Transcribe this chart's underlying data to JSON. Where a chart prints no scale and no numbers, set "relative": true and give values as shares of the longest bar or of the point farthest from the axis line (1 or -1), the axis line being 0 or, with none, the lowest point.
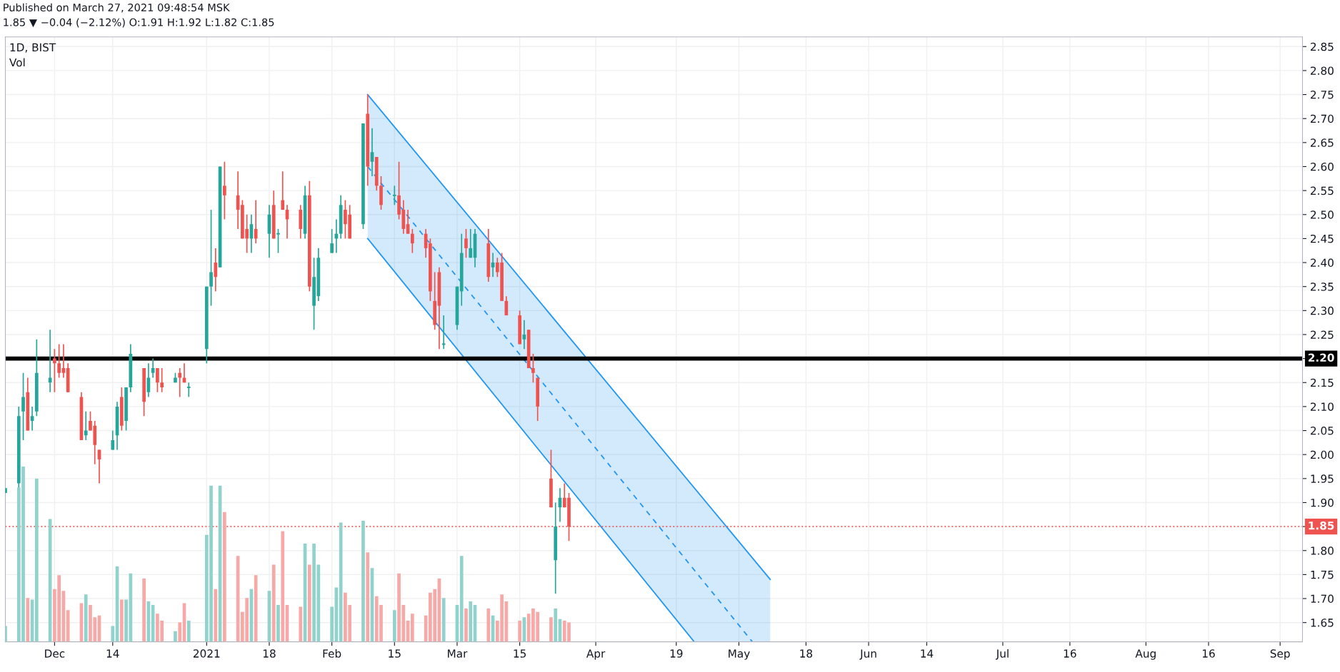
{
  "chart_data": [
    {
      "type": "candlestick",
      "title": "1D, BIST",
      "annotations": [
        "Published on March 27, 2021 09:48:54 MSK",
        "1.85 ▼ −0.04 (−2.12%) O:1.91 H:1.92 L:1.82 C:1.85"
      ],
      "x": [
        "2020-11-20",
        "2020-11-23",
        "2020-11-24",
        "2020-11-25",
        "2020-11-26",
        "2020-11-27",
        "2020-11-30",
        "2020-12-01",
        "2020-12-02",
        "2020-12-03",
        "2020-12-04",
        "2020-12-07",
        "2020-12-08",
        "2020-12-09",
        "2020-12-10",
        "2020-12-11",
        "2020-12-14",
        "2020-12-15",
        "2020-12-16",
        "2020-12-17",
        "2020-12-18",
        "2020-12-21",
        "2020-12-22",
        "2020-12-23",
        "2020-12-24",
        "2020-12-25",
        "2020-12-28",
        "2020-12-29",
        "2020-12-30",
        "2020-12-31",
        "2021-01-04",
        "2021-01-05",
        "2021-01-06",
        "2021-01-07",
        "2021-01-08",
        "2021-01-11",
        "2021-01-12",
        "2021-01-13",
        "2021-01-14",
        "2021-01-15",
        "2021-01-18",
        "2021-01-19",
        "2021-01-20",
        "2021-01-21",
        "2021-01-22",
        "2021-01-25",
        "2021-01-26",
        "2021-01-27",
        "2021-01-28",
        "2021-01-29",
        "2021-02-01",
        "2021-02-02",
        "2021-02-03",
        "2021-02-04",
        "2021-02-05",
        "2021-02-08",
        "2021-02-09",
        "2021-02-10",
        "2021-02-11",
        "2021-02-12",
        "2021-02-15",
        "2021-02-16",
        "2021-02-17",
        "2021-02-18",
        "2021-02-19",
        "2021-02-22",
        "2021-02-23",
        "2021-02-24",
        "2021-02-25",
        "2021-02-26",
        "2021-03-01",
        "2021-03-02",
        "2021-03-03",
        "2021-03-04",
        "2021-03-05",
        "2021-03-08",
        "2021-03-09",
        "2021-03-10",
        "2021-03-11",
        "2021-03-12",
        "2021-03-15",
        "2021-03-16",
        "2021-03-17",
        "2021-03-18",
        "2021-03-19",
        "2021-03-22",
        "2021-03-23",
        "2021-03-24",
        "2021-03-25",
        "2021-03-26"
      ],
      "ohlc": [
        [
          1.92,
          1.93,
          1.92,
          1.93
        ],
        [
          1.94,
          2.1,
          1.92,
          2.08
        ],
        [
          2.09,
          2.17,
          2.03,
          2.12
        ],
        [
          2.13,
          2.16,
          2.05,
          2.05
        ],
        [
          2.07,
          2.1,
          2.05,
          2.08
        ],
        [
          2.09,
          2.24,
          2.08,
          2.17
        ],
        [
          2.15,
          2.26,
          2.13,
          2.16
        ],
        [
          2.2,
          2.22,
          2.13,
          2.19
        ],
        [
          2.19,
          2.23,
          2.16,
          2.17
        ],
        [
          2.18,
          2.23,
          2.16,
          2.17
        ],
        [
          2.18,
          2.19,
          2.13,
          2.13
        ],
        [
          2.12,
          2.13,
          2.03,
          2.03
        ],
        [
          2.04,
          2.09,
          2.03,
          2.05
        ],
        [
          2.07,
          2.09,
          2.05,
          2.05
        ],
        [
          2.06,
          2.07,
          1.98,
          2.02
        ],
        [
          2.01,
          2.01,
          1.94,
          1.99
        ],
        [
          2.01,
          2.05,
          2.01,
          2.03
        ],
        [
          2.04,
          2.11,
          2.01,
          2.1
        ],
        [
          2.12,
          2.14,
          2.05,
          2.06
        ],
        [
          2.07,
          2.14,
          2.05,
          2.14
        ],
        [
          2.14,
          2.23,
          2.13,
          2.21
        ],
        [
          2.18,
          2.18,
          2.08,
          2.11
        ],
        [
          2.13,
          2.19,
          2.12,
          2.16
        ],
        [
          2.17,
          2.2,
          2.16,
          2.18
        ],
        [
          2.18,
          2.18,
          2.13,
          2.15
        ],
        [
          2.15,
          2.18,
          2.13,
          2.14
        ],
        [
          2.15,
          2.17,
          2.15,
          2.16
        ],
        [
          2.17,
          2.18,
          2.12,
          2.16
        ],
        [
          2.16,
          2.19,
          2.15,
          2.15
        ],
        [
          2.14,
          2.15,
          2.12,
          2.14
        ],
        [
          2.22,
          2.35,
          2.19,
          2.35
        ],
        [
          2.35,
          2.51,
          2.31,
          2.38
        ],
        [
          2.4,
          2.43,
          2.34,
          2.37
        ],
        [
          2.39,
          2.6,
          2.39,
          2.6
        ],
        [
          2.56,
          2.61,
          2.49,
          2.54
        ],
        [
          2.54,
          2.59,
          2.47,
          2.51
        ],
        [
          2.52,
          2.53,
          2.45,
          2.45
        ],
        [
          2.47,
          2.5,
          2.42,
          2.45
        ],
        [
          2.45,
          2.5,
          2.42,
          2.48
        ],
        [
          2.47,
          2.53,
          2.44,
          2.45
        ],
        [
          2.46,
          2.52,
          2.41,
          2.5
        ],
        [
          2.52,
          2.55,
          2.45,
          2.45
        ],
        [
          2.46,
          2.47,
          2.42,
          2.46
        ],
        [
          2.53,
          2.59,
          2.51,
          2.51
        ],
        [
          2.51,
          2.52,
          2.45,
          2.49
        ],
        [
          2.51,
          2.52,
          2.45,
          2.47
        ],
        [
          2.46,
          2.56,
          2.45,
          2.54
        ],
        [
          2.54,
          2.57,
          2.34,
          2.35
        ],
        [
          2.31,
          2.41,
          2.26,
          2.37
        ],
        [
          2.33,
          2.43,
          2.32,
          2.41
        ],
        [
          2.42,
          2.47,
          2.42,
          2.44
        ],
        [
          2.45,
          2.49,
          2.42,
          2.46
        ],
        [
          2.46,
          2.54,
          2.45,
          2.52
        ],
        [
          2.51,
          2.53,
          2.45,
          2.48
        ],
        [
          2.5,
          2.52,
          2.45,
          2.45
        ],
        [
          2.48,
          2.69,
          2.47,
          2.69
        ],
        [
          2.71,
          2.75,
          2.56,
          2.6
        ],
        [
          2.61,
          2.68,
          2.58,
          2.63
        ],
        [
          2.62,
          2.62,
          2.55,
          2.56
        ],
        [
          2.56,
          2.58,
          2.51,
          2.52
        ],
        [
          2.54,
          2.56,
          2.52,
          2.54
        ],
        [
          2.54,
          2.61,
          2.49,
          2.5
        ],
        [
          2.51,
          2.53,
          2.46,
          2.47
        ],
        [
          2.48,
          2.51,
          2.46,
          2.46
        ],
        [
          2.46,
          2.47,
          2.42,
          2.44
        ],
        [
          2.46,
          2.47,
          2.41,
          2.43
        ],
        [
          2.44,
          2.45,
          2.32,
          2.34
        ],
        [
          2.32,
          2.38,
          2.26,
          2.27
        ],
        [
          2.38,
          2.39,
          2.22,
          2.31
        ],
        [
          2.23,
          2.29,
          2.22,
          2.23
        ],
        [
          2.27,
          2.35,
          2.26,
          2.35
        ],
        [
          2.34,
          2.46,
          2.31,
          2.42
        ],
        [
          2.45,
          2.47,
          2.41,
          2.43
        ],
        [
          2.41,
          2.47,
          2.41,
          2.43
        ],
        [
          2.41,
          2.47,
          2.39,
          2.46
        ],
        [
          2.44,
          2.47,
          2.36,
          2.37
        ],
        [
          2.39,
          2.42,
          2.37,
          2.4
        ],
        [
          2.4,
          2.41,
          2.37,
          2.38
        ],
        [
          2.4,
          2.42,
          2.32,
          2.32
        ],
        [
          2.32,
          2.33,
          2.29,
          2.29
        ],
        [
          2.29,
          2.3,
          2.23,
          2.23
        ],
        [
          2.24,
          2.28,
          2.22,
          2.25
        ],
        [
          2.26,
          2.26,
          2.18,
          2.18
        ],
        [
          2.18,
          2.21,
          2.15,
          2.17
        ],
        [
          2.16,
          2.16,
          2.07,
          2.1
        ],
        [
          1.95,
          2.01,
          1.89,
          1.89
        ],
        [
          1.78,
          1.9,
          1.71,
          1.85
        ],
        [
          1.89,
          1.93,
          1.86,
          1.91
        ],
        [
          1.91,
          1.94,
          1.89,
          1.89
        ],
        [
          1.91,
          1.92,
          1.82,
          1.85
        ]
      ],
      "colors": [
        "#26a69a",
        "#26a69a",
        "#26a69a",
        "#ef5350",
        "#26a69a",
        "#26a69a",
        "#26a69a",
        "#ef5350",
        "#ef5350",
        "#ef5350",
        "#ef5350",
        "#ef5350",
        "#26a69a",
        "#ef5350",
        "#ef5350",
        "#ef5350",
        "#26a69a",
        "#26a69a",
        "#ef5350",
        "#26a69a",
        "#26a69a",
        "#ef5350",
        "#26a69a",
        "#26a69a",
        "#ef5350",
        "#ef5350",
        "#26a69a",
        "#ef5350",
        "#ef5350",
        "#26a69a",
        "#26a69a",
        "#26a69a",
        "#ef5350",
        "#26a69a",
        "#ef5350",
        "#ef5350",
        "#ef5350",
        "#ef5350",
        "#26a69a",
        "#ef5350",
        "#26a69a",
        "#ef5350",
        "#26a69a",
        "#ef5350",
        "#ef5350",
        "#ef5350",
        "#26a69a",
        "#ef5350",
        "#26a69a",
        "#26a69a",
        "#26a69a",
        "#26a69a",
        "#26a69a",
        "#ef5350",
        "#ef5350",
        "#26a69a",
        "#ef5350",
        "#26a69a",
        "#ef5350",
        "#ef5350",
        "#26a69a",
        "#ef5350",
        "#ef5350",
        "#ef5350",
        "#ef5350",
        "#ef5350",
        "#ef5350",
        "#ef5350",
        "#ef5350",
        "#26a69a",
        "#26a69a",
        "#26a69a",
        "#ef5350",
        "#26a69a",
        "#26a69a",
        "#ef5350",
        "#26a69a",
        "#ef5350",
        "#ef5350",
        "#ef5350",
        "#ef5350",
        "#26a69a",
        "#ef5350",
        "#ef5350",
        "#ef5350",
        "#ef5350",
        "#26a69a",
        "#26a69a",
        "#ef5350",
        "#ef5350"
      ],
      "series": [
        {
          "type": "line",
          "color": "#2196f3",
          "line_style": "solid",
          "x": [
            "2021-02-09",
            "2021-05-10"
          ],
          "values": [
            2.75,
            1.74
          ]
        },
        {
          "type": "line",
          "color": "#2196f3",
          "line_style": "dashed",
          "x": [
            "2021-02-09",
            "2021-05-06"
          ],
          "values": [
            2.6,
            1.61
          ]
        },
        {
          "type": "line",
          "color": "#2196f3",
          "line_style": "solid",
          "x": [
            "2021-02-09",
            "2021-04-23"
          ],
          "values": [
            2.45,
            1.61
          ]
        }
      ],
      "ref_lines": [
        {
          "axis": "y",
          "value": 2.2,
          "label": "2.20",
          "color": "#000000",
          "line_style": "solid"
        },
        {
          "axis": "y",
          "value": 1.85,
          "label": "1.85",
          "color": "#ef5350",
          "line_style": "dotted"
        }
      ],
      "xlim": [
        "2020-11-20",
        "2021-09-06"
      ],
      "xticks": [
        {
          "value": "2020-12-01",
          "label": "Dec"
        },
        {
          "value": "2020-12-14",
          "label": "14"
        },
        {
          "value": "2021-01-04",
          "label": "2021"
        },
        {
          "value": "2021-01-18",
          "label": "18"
        },
        {
          "value": "2021-02-01",
          "label": "Feb"
        },
        {
          "value": "2021-02-15",
          "label": "15"
        },
        {
          "value": "2021-03-01",
          "label": "Mar"
        },
        {
          "value": "2021-03-15",
          "label": "15"
        },
        {
          "value": "2021-04-01",
          "label": "Apr"
        },
        {
          "value": "2021-04-19",
          "label": "19"
        },
        {
          "value": "2021-05-03",
          "label": "May"
        },
        {
          "value": "2021-05-18",
          "label": "18"
        },
        {
          "value": "2021-06-01",
          "label": "Jun"
        },
        {
          "value": "2021-06-14",
          "label": "14"
        },
        {
          "value": "2021-07-01",
          "label": "Jul"
        },
        {
          "value": "2021-07-16",
          "label": "16"
        },
        {
          "value": "2021-08-02",
          "label": "Aug"
        },
        {
          "value": "2021-08-16",
          "label": "16"
        },
        {
          "value": "2021-09-01",
          "label": "Sep"
        }
      ],
      "ylim": [
        1.61,
        2.87
      ],
      "yticks": [
        {
          "value": 1.65,
          "label": "1.65"
        },
        {
          "value": 1.7,
          "label": "1.70"
        },
        {
          "value": 1.75,
          "label": "1.75"
        },
        {
          "value": 1.8,
          "label": "1.80"
        },
        {
          "value": 1.85,
          "label": null
        },
        {
          "value": 1.9,
          "label": "1.90"
        },
        {
          "value": 1.95,
          "label": "1.95"
        },
        {
          "value": 2.0,
          "label": "2.00"
        },
        {
          "value": 2.05,
          "label": "2.05"
        },
        {
          "value": 2.1,
          "label": "2.10"
        },
        {
          "value": 2.15,
          "label": "2.15"
        },
        {
          "value": 2.2,
          "label": null
        },
        {
          "value": 2.25,
          "label": "2.25"
        },
        {
          "value": 2.3,
          "label": "2.30"
        },
        {
          "value": 2.35,
          "label": "2.35"
        },
        {
          "value": 2.4,
          "label": "2.40"
        },
        {
          "value": 2.45,
          "label": "2.45"
        },
        {
          "value": 2.5,
          "label": "2.50"
        },
        {
          "value": 2.55,
          "label": "2.55"
        },
        {
          "value": 2.6,
          "label": "2.60"
        },
        {
          "value": 2.65,
          "label": "2.65"
        },
        {
          "value": 2.7,
          "label": "2.70"
        },
        {
          "value": 2.75,
          "label": "2.75"
        },
        {
          "value": 2.8,
          "label": "2.80"
        },
        {
          "value": 2.85,
          "label": "2.85"
        }
      ],
      "grid": true
    },
    {
      "type": "bar",
      "title": "Vol",
      "relative": true,
      "tick_labels": false,
      "xlim": [
        "2020-11-20",
        "2021-09-06"
      ],
      "x": [
        "2020-11-20",
        "2020-11-23",
        "2020-11-24",
        "2020-11-25",
        "2020-11-26",
        "2020-11-27",
        "2020-11-30",
        "2020-12-01",
        "2020-12-02",
        "2020-12-03",
        "2020-12-04",
        "2020-12-07",
        "2020-12-08",
        "2020-12-09",
        "2020-12-10",
        "2020-12-11",
        "2020-12-14",
        "2020-12-15",
        "2020-12-16",
        "2020-12-17",
        "2020-12-18",
        "2020-12-21",
        "2020-12-22",
        "2020-12-23",
        "2020-12-24",
        "2020-12-25",
        "2020-12-28",
        "2020-12-29",
        "2020-12-30",
        "2020-12-31",
        "2021-01-04",
        "2021-01-05",
        "2021-01-06",
        "2021-01-07",
        "2021-01-08",
        "2021-01-11",
        "2021-01-12",
        "2021-01-13",
        "2021-01-14",
        "2021-01-15",
        "2021-01-18",
        "2021-01-19",
        "2021-01-20",
        "2021-01-21",
        "2021-01-22",
        "2021-01-25",
        "2021-01-26",
        "2021-01-27",
        "2021-01-28",
        "2021-01-29",
        "2021-02-01",
        "2021-02-02",
        "2021-02-03",
        "2021-02-04",
        "2021-02-05",
        "2021-02-08",
        "2021-02-09",
        "2021-02-10",
        "2021-02-11",
        "2021-02-12",
        "2021-02-15",
        "2021-02-16",
        "2021-02-17",
        "2021-02-18",
        "2021-02-19",
        "2021-02-22",
        "2021-02-23",
        "2021-02-24",
        "2021-02-25",
        "2021-02-26",
        "2021-03-01",
        "2021-03-02",
        "2021-03-03",
        "2021-03-04",
        "2021-03-05",
        "2021-03-08",
        "2021-03-09",
        "2021-03-10",
        "2021-03-11",
        "2021-03-12",
        "2021-03-15",
        "2021-03-16",
        "2021-03-17",
        "2021-03-18",
        "2021-03-19",
        "2021-03-22",
        "2021-03-23",
        "2021-03-24",
        "2021-03-25",
        "2021-03-26"
      ],
      "values": [
        0.09,
        0.88,
        1.0,
        0.25,
        0.24,
        0.93,
        0.7,
        0.3,
        0.38,
        0.29,
        0.18,
        0.22,
        0.27,
        0.21,
        0.14,
        0.15,
        0.09,
        0.43,
        0.24,
        0.24,
        0.39,
        0.36,
        0.23,
        0.21,
        0.16,
        0.12,
        0.06,
        0.11,
        0.22,
        0.12,
        0.61,
        0.89,
        0.3,
        0.89,
        0.74,
        0.49,
        0.17,
        0.25,
        0.3,
        0.38,
        0.29,
        0.44,
        0.21,
        0.63,
        0.21,
        0.2,
        0.56,
        0.44,
        0.56,
        0.44,
        0.2,
        0.31,
        0.68,
        0.28,
        0.21,
        0.69,
        0.51,
        0.42,
        0.26,
        0.21,
        0.18,
        0.39,
        0.21,
        0.12,
        0.16,
        0.15,
        0.28,
        0.3,
        0.36,
        0.25,
        0.21,
        0.49,
        0.19,
        0.23,
        0.21,
        0.19,
        0.15,
        0.12,
        0.27,
        0.23,
        0.12,
        0.14,
        0.16,
        0.19,
        0.17,
        0.14,
        0.19,
        0.13,
        0.12,
        0.11
      ],
      "colors": [
        "#92d2cc",
        "#92d2cc",
        "#92d2cc",
        "#f7a9a7",
        "#92d2cc",
        "#92d2cc",
        "#92d2cc",
        "#f7a9a7",
        "#f7a9a7",
        "#f7a9a7",
        "#f7a9a7",
        "#f7a9a7",
        "#92d2cc",
        "#f7a9a7",
        "#f7a9a7",
        "#f7a9a7",
        "#92d2cc",
        "#92d2cc",
        "#f7a9a7",
        "#92d2cc",
        "#92d2cc",
        "#f7a9a7",
        "#92d2cc",
        "#92d2cc",
        "#f7a9a7",
        "#f7a9a7",
        "#92d2cc",
        "#f7a9a7",
        "#f7a9a7",
        "#92d2cc",
        "#92d2cc",
        "#92d2cc",
        "#f7a9a7",
        "#92d2cc",
        "#f7a9a7",
        "#f7a9a7",
        "#f7a9a7",
        "#f7a9a7",
        "#92d2cc",
        "#f7a9a7",
        "#92d2cc",
        "#f7a9a7",
        "#92d2cc",
        "#f7a9a7",
        "#f7a9a7",
        "#f7a9a7",
        "#92d2cc",
        "#f7a9a7",
        "#92d2cc",
        "#92d2cc",
        "#92d2cc",
        "#92d2cc",
        "#92d2cc",
        "#f7a9a7",
        "#f7a9a7",
        "#92d2cc",
        "#f7a9a7",
        "#92d2cc",
        "#f7a9a7",
        "#f7a9a7",
        "#92d2cc",
        "#f7a9a7",
        "#f7a9a7",
        "#f7a9a7",
        "#f7a9a7",
        "#f7a9a7",
        "#f7a9a7",
        "#f7a9a7",
        "#f7a9a7",
        "#92d2cc",
        "#92d2cc",
        "#92d2cc",
        "#f7a9a7",
        "#92d2cc",
        "#92d2cc",
        "#f7a9a7",
        "#92d2cc",
        "#f7a9a7",
        "#f7a9a7",
        "#f7a9a7",
        "#f7a9a7",
        "#92d2cc",
        "#f7a9a7",
        "#f7a9a7",
        "#f7a9a7",
        "#f7a9a7",
        "#92d2cc",
        "#92d2cc",
        "#f7a9a7",
        "#f7a9a7"
      ]
    }
  ]
}
